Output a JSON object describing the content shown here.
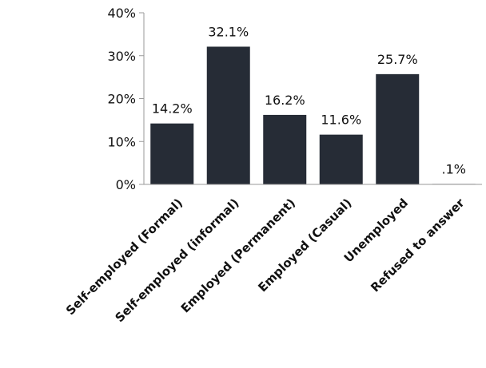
{
  "chart_data": {
    "type": "bar",
    "categories": [
      "Self-employed (Formal)",
      "Self-employed (informal)",
      "Employed (Permanent)",
      "Employed (Casual)",
      "Unemployed",
      "Refused to answer"
    ],
    "values": [
      14.2,
      32.1,
      16.2,
      11.6,
      25.7,
      0.1
    ],
    "data_labels": [
      "14.2%",
      "32.1%",
      "16.2%",
      "11.6%",
      "25.7%",
      ".1%"
    ],
    "y_ticks": [
      "0%",
      "10%",
      "20%",
      "30%",
      "40%"
    ],
    "y_tick_values": [
      0,
      10,
      20,
      30,
      40
    ],
    "ylim": [
      0,
      40
    ],
    "title": "",
    "xlabel": "",
    "ylabel": "",
    "grid": false,
    "bar_color": "#262c36"
  }
}
